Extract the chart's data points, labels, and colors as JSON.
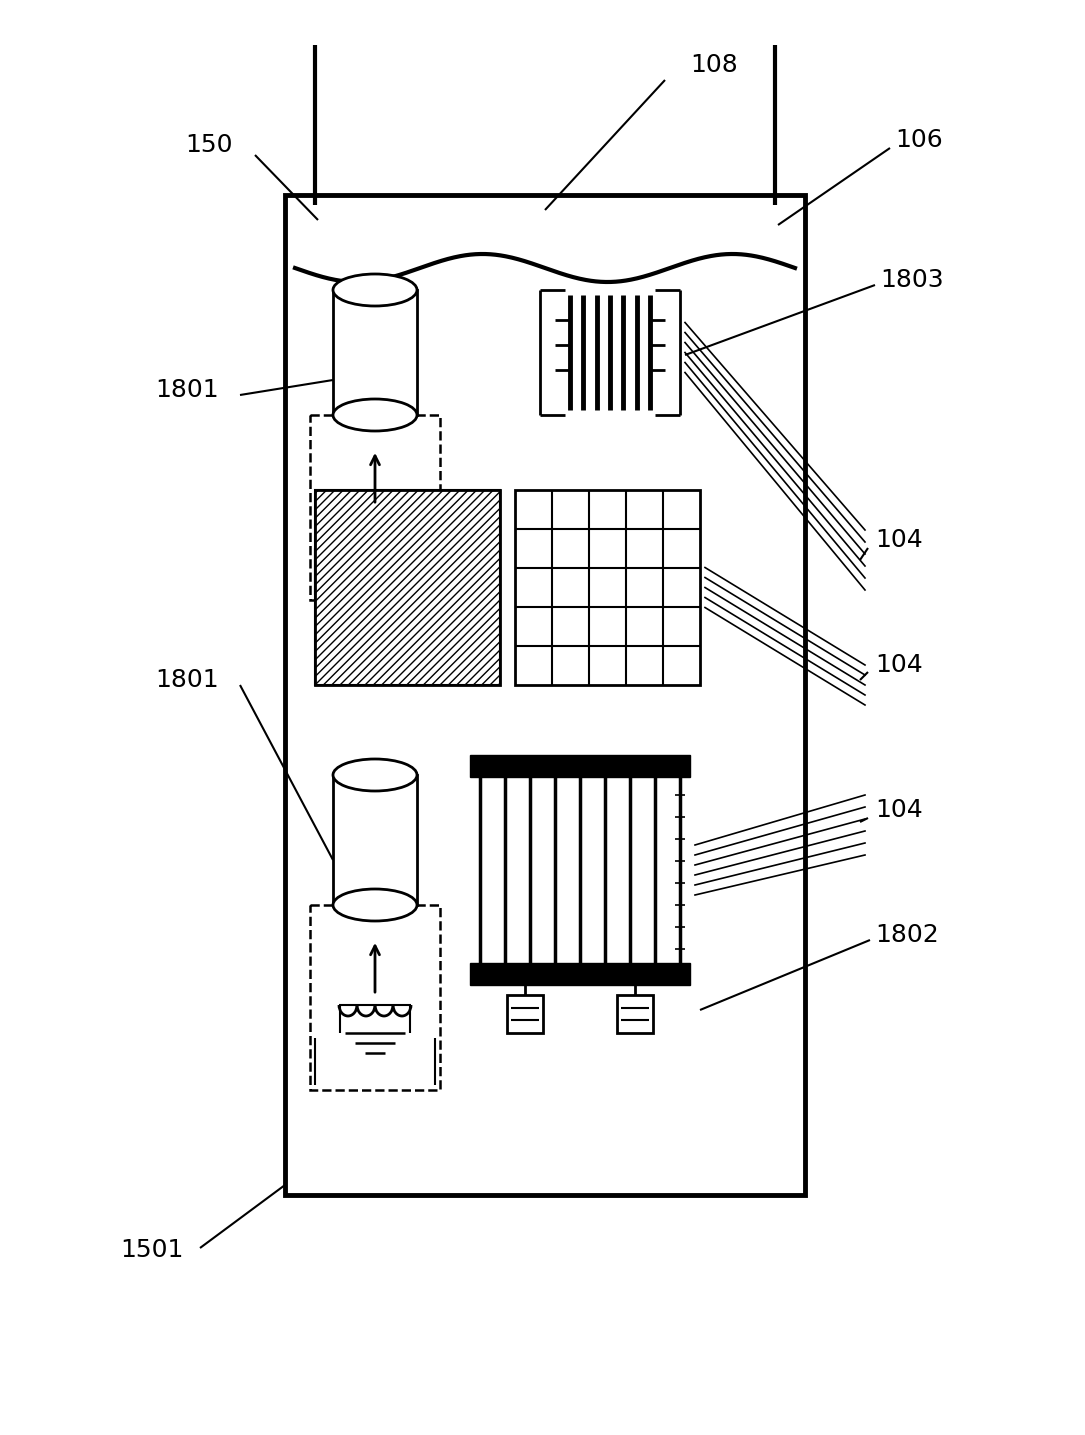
{
  "bg_color": "#ffffff",
  "line_color": "#000000",
  "figsize": [
    10.85,
    14.35
  ],
  "dpi": 100,
  "labels_fs": 18
}
